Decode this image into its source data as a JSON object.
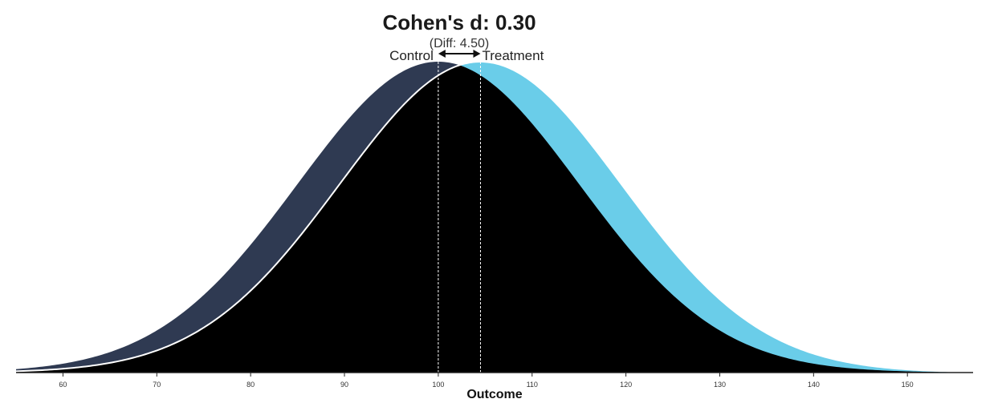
{
  "chart_data": {
    "type": "area",
    "title": "Cohen's d: 0.30",
    "subtitle": "(Diff: 4.50)",
    "xlabel": "Outcome",
    "ylabel": "",
    "xlim": [
      55,
      157
    ],
    "x_ticks": [
      60,
      70,
      80,
      90,
      100,
      110,
      120,
      130,
      140,
      150
    ],
    "grid": false,
    "series": [
      {
        "name": "Control",
        "mean": 100,
        "sd": 15,
        "color": "#2f3a52"
      },
      {
        "name": "Treatment",
        "mean": 104.5,
        "sd": 15,
        "color": "#6acde9"
      }
    ],
    "overlap_color": "#000000",
    "cohens_d": 0.3,
    "mean_difference": 4.5
  }
}
